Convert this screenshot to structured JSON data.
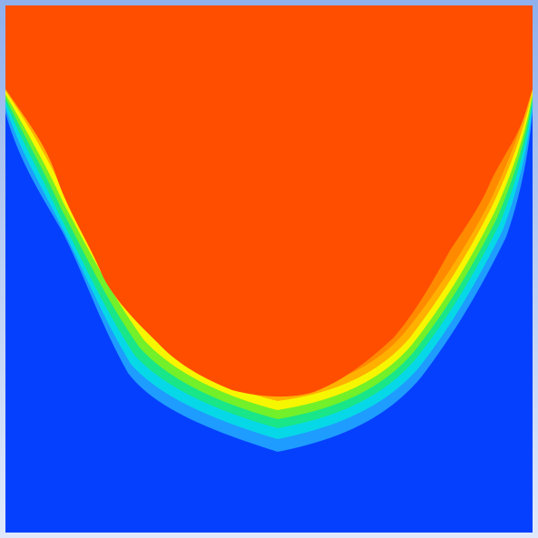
{
  "view": {
    "kind": "contour-plot",
    "background_color": "#0540ff",
    "frame_color": "#8fb0ec",
    "colors": {
      "level_0": "#0540ff",
      "level_1": "#1e9cff",
      "level_2": "#06d8e8",
      "level_3": "#19e688",
      "level_4": "#72f02a",
      "level_5": "#f6f600",
      "level_6": "#ffb000",
      "level_7": "#ff8a00",
      "level_8": "#ff4e00"
    }
  }
}
